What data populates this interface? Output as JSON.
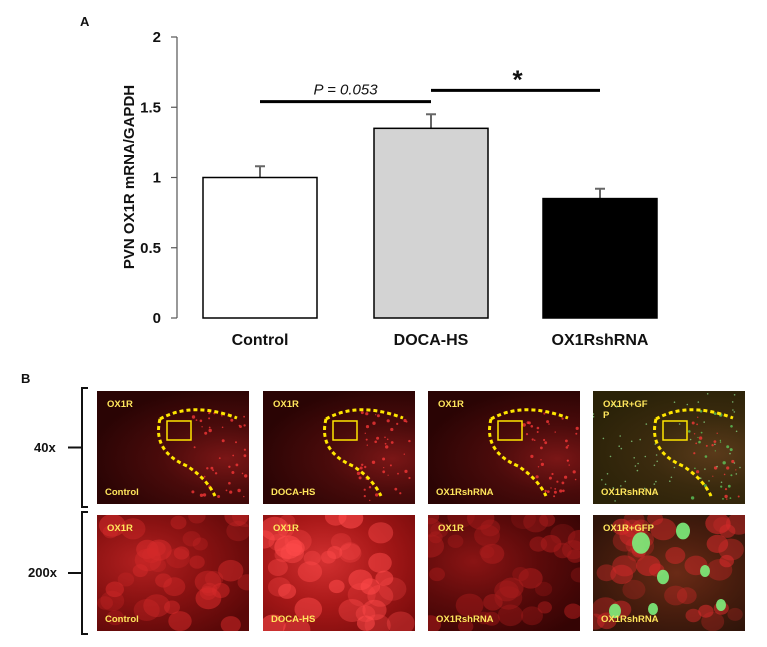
{
  "figure": {
    "panel_a_label": "A",
    "panel_b_label": "B"
  },
  "chart_data": {
    "type": "bar",
    "categories": [
      "Control",
      "DOCA-HS",
      "OX1RshRNA"
    ],
    "values": [
      1.0,
      1.35,
      0.85
    ],
    "errors": [
      0.08,
      0.1,
      0.07
    ],
    "bar_colors": [
      "#ffffff",
      "#d3d3d3",
      "#000000"
    ],
    "ylabel": "PVN OX1R mRNA/GAPDH",
    "ylim": [
      0,
      2
    ],
    "yticks": [
      "0",
      "0.5",
      "1",
      "1.5",
      "2"
    ],
    "ytick_values": [
      0,
      0.5,
      1,
      1.5,
      2
    ],
    "annotations": [
      {
        "from": 0,
        "to": 1,
        "y": 1.54,
        "text": "P = 0.053"
      },
      {
        "from": 1,
        "to": 2,
        "y": 1.62,
        "text": "*"
      }
    ]
  },
  "micrographs": {
    "rows": [
      {
        "label": "40x",
        "panels": [
          {
            "top": "OX1R",
            "bottom": "Control",
            "style": "red-40x"
          },
          {
            "top": "OX1R",
            "bottom": "DOCA-HS",
            "style": "red-40x"
          },
          {
            "top": "OX1R",
            "bottom": "OX1RshRNA",
            "style": "red-40x"
          },
          {
            "top": "OX1R+GF\nP",
            "bottom": "OX1RshRNA",
            "style": "merge-40x"
          }
        ]
      },
      {
        "label": "200x",
        "panels": [
          {
            "top": "OX1R",
            "bottom": "Control",
            "style": "red-200x"
          },
          {
            "top": "OX1R",
            "bottom": "DOCA-HS",
            "style": "red-200x-bright"
          },
          {
            "top": "OX1R",
            "bottom": "OX1RshRNA",
            "style": "red-200x-dim"
          },
          {
            "top": "OX1R+GFP",
            "bottom": "OX1RshRNA",
            "style": "merge-200x"
          }
        ]
      }
    ],
    "label_color": "#ffe65c",
    "dashed_outline_color": "#ffe600",
    "box_color": "#ffe600"
  }
}
